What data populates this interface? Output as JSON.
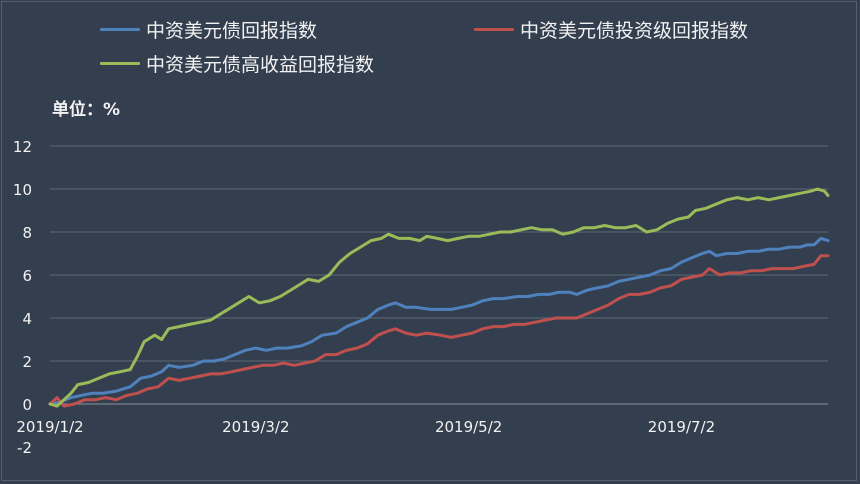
{
  "unit_label": "单位：%",
  "colors": {
    "background": "#333f4f",
    "grid": "#5e6876",
    "text": "#f2f2f2"
  },
  "chart_data": {
    "type": "line",
    "title": "",
    "xlabel": "",
    "ylabel": "",
    "ylim": [
      -2,
      12
    ],
    "y_ticks": [
      12,
      10,
      8,
      6,
      4,
      2,
      0,
      -2
    ],
    "x_tick_labels": [
      "2019/1/2",
      "2019/3/2",
      "2019/5/2",
      "2019/7/2"
    ],
    "x_tick_dates": [
      "2019-01-02",
      "2019-03-02",
      "2019-05-02",
      "2019-07-02"
    ],
    "x_range": [
      "2019-01-02",
      "2019-08-13"
    ],
    "grid": "horizontal",
    "legend_position": "top",
    "series": [
      {
        "name": "中资美元债回报指数",
        "color": "#4f81bd",
        "points": [
          [
            "2019-01-02",
            0
          ],
          [
            "2019-01-05",
            0.1
          ],
          [
            "2019-01-08",
            0.3
          ],
          [
            "2019-01-11",
            0.4
          ],
          [
            "2019-01-14",
            0.5
          ],
          [
            "2019-01-17",
            0.5
          ],
          [
            "2019-01-21",
            0.6
          ],
          [
            "2019-01-25",
            0.8
          ],
          [
            "2019-01-28",
            1.2
          ],
          [
            "2019-01-31",
            1.3
          ],
          [
            "2019-02-03",
            1.5
          ],
          [
            "2019-02-05",
            1.8
          ],
          [
            "2019-02-08",
            1.7
          ],
          [
            "2019-02-12",
            1.8
          ],
          [
            "2019-02-15",
            2.0
          ],
          [
            "2019-02-18",
            2.0
          ],
          [
            "2019-02-21",
            2.1
          ],
          [
            "2019-02-24",
            2.3
          ],
          [
            "2019-02-27",
            2.5
          ],
          [
            "2019-03-02",
            2.6
          ],
          [
            "2019-03-05",
            2.5
          ],
          [
            "2019-03-08",
            2.6
          ],
          [
            "2019-03-11",
            2.6
          ],
          [
            "2019-03-15",
            2.7
          ],
          [
            "2019-03-18",
            2.9
          ],
          [
            "2019-03-21",
            3.2
          ],
          [
            "2019-03-25",
            3.3
          ],
          [
            "2019-03-28",
            3.6
          ],
          [
            "2019-03-31",
            3.8
          ],
          [
            "2019-04-03",
            4.0
          ],
          [
            "2019-04-06",
            4.4
          ],
          [
            "2019-04-09",
            4.6
          ],
          [
            "2019-04-11",
            4.7
          ],
          [
            "2019-04-14",
            4.5
          ],
          [
            "2019-04-17",
            4.5
          ],
          [
            "2019-04-21",
            4.4
          ],
          [
            "2019-04-24",
            4.4
          ],
          [
            "2019-04-27",
            4.4
          ],
          [
            "2019-04-30",
            4.5
          ],
          [
            "2019-05-03",
            4.6
          ],
          [
            "2019-05-06",
            4.8
          ],
          [
            "2019-05-09",
            4.9
          ],
          [
            "2019-05-12",
            4.9
          ],
          [
            "2019-05-16",
            5.0
          ],
          [
            "2019-05-19",
            5.0
          ],
          [
            "2019-05-22",
            5.1
          ],
          [
            "2019-05-25",
            5.1
          ],
          [
            "2019-05-28",
            5.2
          ],
          [
            "2019-05-31",
            5.2
          ],
          [
            "2019-06-02",
            5.1
          ],
          [
            "2019-06-05",
            5.3
          ],
          [
            "2019-06-08",
            5.4
          ],
          [
            "2019-06-11",
            5.5
          ],
          [
            "2019-06-14",
            5.7
          ],
          [
            "2019-06-17",
            5.8
          ],
          [
            "2019-06-20",
            5.9
          ],
          [
            "2019-06-23",
            6.0
          ],
          [
            "2019-06-26",
            6.2
          ],
          [
            "2019-06-29",
            6.3
          ],
          [
            "2019-07-02",
            6.6
          ],
          [
            "2019-07-05",
            6.8
          ],
          [
            "2019-07-08",
            7.0
          ],
          [
            "2019-07-10",
            7.1
          ],
          [
            "2019-07-12",
            6.9
          ],
          [
            "2019-07-15",
            7.0
          ],
          [
            "2019-07-18",
            7.0
          ],
          [
            "2019-07-21",
            7.1
          ],
          [
            "2019-07-24",
            7.1
          ],
          [
            "2019-07-27",
            7.2
          ],
          [
            "2019-07-30",
            7.2
          ],
          [
            "2019-08-02",
            7.3
          ],
          [
            "2019-08-05",
            7.3
          ],
          [
            "2019-08-07",
            7.4
          ],
          [
            "2019-08-09",
            7.4
          ],
          [
            "2019-08-11",
            7.7
          ],
          [
            "2019-08-13",
            7.6
          ]
        ]
      },
      {
        "name": "中资美元债投资级回报指数",
        "color": "#c0504d",
        "points": [
          [
            "2019-01-02",
            0
          ],
          [
            "2019-01-04",
            0.3
          ],
          [
            "2019-01-06",
            -0.1
          ],
          [
            "2019-01-09",
            0
          ],
          [
            "2019-01-12",
            0.2
          ],
          [
            "2019-01-15",
            0.2
          ],
          [
            "2019-01-18",
            0.3
          ],
          [
            "2019-01-21",
            0.2
          ],
          [
            "2019-01-24",
            0.4
          ],
          [
            "2019-01-27",
            0.5
          ],
          [
            "2019-01-30",
            0.7
          ],
          [
            "2019-02-02",
            0.8
          ],
          [
            "2019-02-05",
            1.2
          ],
          [
            "2019-02-08",
            1.1
          ],
          [
            "2019-02-11",
            1.2
          ],
          [
            "2019-02-14",
            1.3
          ],
          [
            "2019-02-17",
            1.4
          ],
          [
            "2019-02-20",
            1.4
          ],
          [
            "2019-02-23",
            1.5
          ],
          [
            "2019-02-26",
            1.6
          ],
          [
            "2019-03-01",
            1.7
          ],
          [
            "2019-03-04",
            1.8
          ],
          [
            "2019-03-07",
            1.8
          ],
          [
            "2019-03-10",
            1.9
          ],
          [
            "2019-03-13",
            1.8
          ],
          [
            "2019-03-16",
            1.9
          ],
          [
            "2019-03-19",
            2.0
          ],
          [
            "2019-03-22",
            2.3
          ],
          [
            "2019-03-25",
            2.3
          ],
          [
            "2019-03-28",
            2.5
          ],
          [
            "2019-03-31",
            2.6
          ],
          [
            "2019-04-03",
            2.8
          ],
          [
            "2019-04-06",
            3.2
          ],
          [
            "2019-04-09",
            3.4
          ],
          [
            "2019-04-11",
            3.5
          ],
          [
            "2019-04-14",
            3.3
          ],
          [
            "2019-04-17",
            3.2
          ],
          [
            "2019-04-20",
            3.3
          ],
          [
            "2019-04-24",
            3.2
          ],
          [
            "2019-04-27",
            3.1
          ],
          [
            "2019-04-30",
            3.2
          ],
          [
            "2019-05-03",
            3.3
          ],
          [
            "2019-05-06",
            3.5
          ],
          [
            "2019-05-09",
            3.6
          ],
          [
            "2019-05-12",
            3.6
          ],
          [
            "2019-05-15",
            3.7
          ],
          [
            "2019-05-18",
            3.7
          ],
          [
            "2019-05-21",
            3.8
          ],
          [
            "2019-05-24",
            3.9
          ],
          [
            "2019-05-27",
            4.0
          ],
          [
            "2019-05-30",
            4.0
          ],
          [
            "2019-06-02",
            4.0
          ],
          [
            "2019-06-05",
            4.2
          ],
          [
            "2019-06-08",
            4.4
          ],
          [
            "2019-06-11",
            4.6
          ],
          [
            "2019-06-14",
            4.9
          ],
          [
            "2019-06-17",
            5.1
          ],
          [
            "2019-06-20",
            5.1
          ],
          [
            "2019-06-23",
            5.2
          ],
          [
            "2019-06-26",
            5.4
          ],
          [
            "2019-06-29",
            5.5
          ],
          [
            "2019-07-02",
            5.8
          ],
          [
            "2019-07-05",
            5.9
          ],
          [
            "2019-07-08",
            6.0
          ],
          [
            "2019-07-10",
            6.3
          ],
          [
            "2019-07-13",
            6.0
          ],
          [
            "2019-07-16",
            6.1
          ],
          [
            "2019-07-19",
            6.1
          ],
          [
            "2019-07-22",
            6.2
          ],
          [
            "2019-07-25",
            6.2
          ],
          [
            "2019-07-28",
            6.3
          ],
          [
            "2019-07-31",
            6.3
          ],
          [
            "2019-08-03",
            6.3
          ],
          [
            "2019-08-06",
            6.4
          ],
          [
            "2019-08-09",
            6.5
          ],
          [
            "2019-08-11",
            6.9
          ],
          [
            "2019-08-13",
            6.9
          ]
        ]
      },
      {
        "name": "中资美元债高收益回报指数",
        "color": "#9bbb59",
        "points": [
          [
            "2019-01-02",
            0
          ],
          [
            "2019-01-04",
            -0.1
          ],
          [
            "2019-01-06",
            0.2
          ],
          [
            "2019-01-08",
            0.5
          ],
          [
            "2019-01-10",
            0.9
          ],
          [
            "2019-01-13",
            1.0
          ],
          [
            "2019-01-16",
            1.2
          ],
          [
            "2019-01-19",
            1.4
          ],
          [
            "2019-01-22",
            1.5
          ],
          [
            "2019-01-25",
            1.6
          ],
          [
            "2019-01-27",
            2.2
          ],
          [
            "2019-01-29",
            2.9
          ],
          [
            "2019-02-01",
            3.2
          ],
          [
            "2019-02-03",
            3.0
          ],
          [
            "2019-02-05",
            3.5
          ],
          [
            "2019-02-08",
            3.6
          ],
          [
            "2019-02-11",
            3.7
          ],
          [
            "2019-02-14",
            3.8
          ],
          [
            "2019-02-17",
            3.9
          ],
          [
            "2019-02-20",
            4.2
          ],
          [
            "2019-02-23",
            4.5
          ],
          [
            "2019-02-26",
            4.8
          ],
          [
            "2019-02-28",
            5.0
          ],
          [
            "2019-03-03",
            4.7
          ],
          [
            "2019-03-06",
            4.8
          ],
          [
            "2019-03-09",
            5.0
          ],
          [
            "2019-03-12",
            5.3
          ],
          [
            "2019-03-15",
            5.6
          ],
          [
            "2019-03-17",
            5.8
          ],
          [
            "2019-03-20",
            5.7
          ],
          [
            "2019-03-23",
            6.0
          ],
          [
            "2019-03-26",
            6.6
          ],
          [
            "2019-03-29",
            7.0
          ],
          [
            "2019-04-01",
            7.3
          ],
          [
            "2019-04-04",
            7.6
          ],
          [
            "2019-04-07",
            7.7
          ],
          [
            "2019-04-09",
            7.9
          ],
          [
            "2019-04-12",
            7.7
          ],
          [
            "2019-04-15",
            7.7
          ],
          [
            "2019-04-18",
            7.6
          ],
          [
            "2019-04-20",
            7.8
          ],
          [
            "2019-04-23",
            7.7
          ],
          [
            "2019-04-26",
            7.6
          ],
          [
            "2019-04-29",
            7.7
          ],
          [
            "2019-05-02",
            7.8
          ],
          [
            "2019-05-05",
            7.8
          ],
          [
            "2019-05-08",
            7.9
          ],
          [
            "2019-05-11",
            8.0
          ],
          [
            "2019-05-14",
            8.0
          ],
          [
            "2019-05-17",
            8.1
          ],
          [
            "2019-05-20",
            8.2
          ],
          [
            "2019-05-23",
            8.1
          ],
          [
            "2019-05-26",
            8.1
          ],
          [
            "2019-05-29",
            7.9
          ],
          [
            "2019-06-01",
            8.0
          ],
          [
            "2019-06-04",
            8.2
          ],
          [
            "2019-06-07",
            8.2
          ],
          [
            "2019-06-10",
            8.3
          ],
          [
            "2019-06-13",
            8.2
          ],
          [
            "2019-06-16",
            8.2
          ],
          [
            "2019-06-19",
            8.3
          ],
          [
            "2019-06-22",
            8.0
          ],
          [
            "2019-06-25",
            8.1
          ],
          [
            "2019-06-28",
            8.4
          ],
          [
            "2019-07-01",
            8.6
          ],
          [
            "2019-07-04",
            8.7
          ],
          [
            "2019-07-06",
            9.0
          ],
          [
            "2019-07-09",
            9.1
          ],
          [
            "2019-07-12",
            9.3
          ],
          [
            "2019-07-15",
            9.5
          ],
          [
            "2019-07-18",
            9.6
          ],
          [
            "2019-07-21",
            9.5
          ],
          [
            "2019-07-24",
            9.6
          ],
          [
            "2019-07-27",
            9.5
          ],
          [
            "2019-07-30",
            9.6
          ],
          [
            "2019-08-02",
            9.7
          ],
          [
            "2019-08-05",
            9.8
          ],
          [
            "2019-08-08",
            9.9
          ],
          [
            "2019-08-10",
            10.0
          ],
          [
            "2019-08-12",
            9.9
          ],
          [
            "2019-08-13",
            9.7
          ]
        ]
      }
    ]
  }
}
